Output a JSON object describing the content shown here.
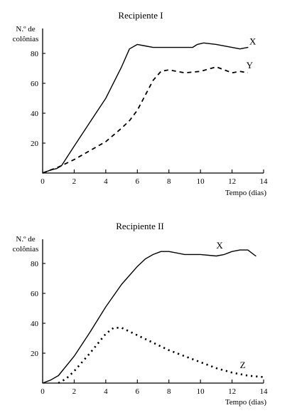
{
  "chart_data": [
    {
      "type": "line",
      "title": "Recipiente I",
      "ylabel_line1": "N.º de",
      "ylabel_line2": "colônias",
      "xlabel": "Tempo (dias)",
      "xlim": [
        0,
        14
      ],
      "ylim": [
        0,
        90
      ],
      "xticks": [
        0,
        2,
        4,
        6,
        8,
        10,
        12,
        14
      ],
      "yticks": [
        20,
        40,
        60,
        80
      ],
      "grid": false,
      "series": [
        {
          "name": "X",
          "style": "solid",
          "x": [
            0,
            0.5,
            0.9,
            1.2,
            2,
            3,
            4,
            5,
            5.5,
            6,
            6.5,
            7,
            8,
            9,
            9.5,
            9.8,
            10.2,
            11,
            12,
            12.5,
            13
          ],
          "y": [
            0,
            2,
            3,
            5,
            18,
            34,
            50,
            71,
            83,
            86,
            85,
            84,
            84,
            84,
            84,
            86,
            87,
            86,
            84,
            83,
            84
          ]
        },
        {
          "name": "Y",
          "style": "dashed",
          "x": [
            0,
            1,
            2,
            3,
            4,
            5,
            5.5,
            6,
            6.5,
            7,
            7.5,
            8,
            8.5,
            9,
            10,
            11,
            12,
            12.5,
            13
          ],
          "y": [
            0,
            4,
            9,
            15,
            21,
            30,
            35,
            42,
            52,
            62,
            68,
            69,
            68,
            67,
            68,
            71,
            67,
            68,
            67
          ]
        }
      ]
    },
    {
      "type": "line",
      "title": "Recipiente II",
      "ylabel_line1": "N.º de",
      "ylabel_line2": "colônias",
      "xlabel": "Tempo (dias)",
      "xlim": [
        0,
        14
      ],
      "ylim": [
        0,
        90
      ],
      "xticks": [
        0,
        2,
        4,
        6,
        8,
        10,
        12,
        14
      ],
      "yticks": [
        20,
        40,
        60,
        80
      ],
      "grid": false,
      "series": [
        {
          "name": "X",
          "style": "solid",
          "x": [
            0,
            0.5,
            1,
            2,
            3,
            4,
            5,
            6,
            6.5,
            7,
            7.5,
            8,
            9,
            10,
            11,
            11.5,
            12,
            12.5,
            13,
            13.5
          ],
          "y": [
            0,
            2,
            5,
            18,
            34,
            51,
            66,
            78,
            83,
            86,
            88,
            88,
            86,
            86,
            85,
            86,
            88,
            89,
            89,
            85
          ]
        },
        {
          "name": "Z",
          "style": "dotted",
          "x": [
            1,
            1.5,
            2,
            3,
            4,
            4.5,
            5,
            6,
            7,
            8,
            9,
            10,
            11,
            12,
            13,
            14
          ],
          "y": [
            0,
            3,
            8,
            20,
            33,
            37,
            37,
            32,
            27,
            22,
            18,
            14,
            10,
            7,
            5,
            4
          ]
        }
      ]
    }
  ]
}
